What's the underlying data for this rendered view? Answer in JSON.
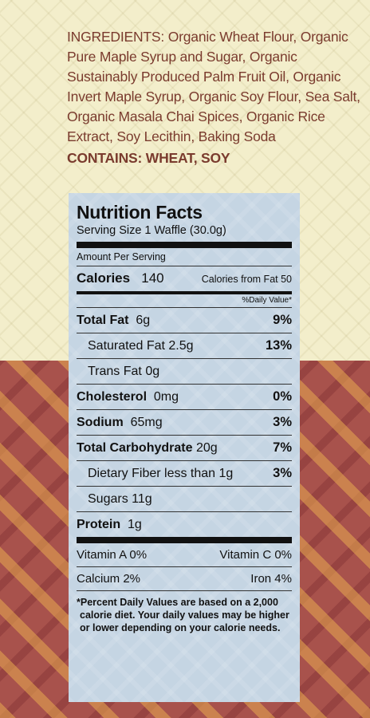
{
  "ingredients": {
    "text": "INGREDIENTS: Organic Wheat Flour, Organic Pure Maple Syrup and Sugar, Organic Sustainably Produced Palm Fruit Oil, Organic Invert Maple Syrup, Organic Soy Flour, Sea Salt, Organic Masala Chai Spices, Organic Rice Extract, Soy Lecithin, Baking Soda",
    "contains": "CONTAINS: WHEAT, SOY"
  },
  "nutrition": {
    "title": "Nutrition Facts",
    "serving_size": "Serving Size 1 Waffle (30.0g)",
    "amount_per_serving": "Amount Per Serving",
    "calories_label": "Calories",
    "calories_value": "140",
    "calories_from_fat": "Calories from Fat 50",
    "daily_value_header": "%Daily Value*",
    "rows": [
      {
        "label": "Total Fat",
        "amount": "6g",
        "pct": "9%"
      },
      {
        "label": "Saturated Fat",
        "amount": "2.5g",
        "pct": "13%"
      },
      {
        "label": "Trans Fat",
        "amount": "0g",
        "pct": ""
      },
      {
        "label": "Cholesterol",
        "amount": "0mg",
        "pct": "0%"
      },
      {
        "label": "Sodium",
        "amount": "65mg",
        "pct": "3%"
      },
      {
        "label": "Total Carbohydrate",
        "amount": "20g",
        "pct": "7%"
      },
      {
        "label": "Dietary Fiber",
        "amount": "less than 1g",
        "pct": "3%"
      },
      {
        "label": "Sugars",
        "amount": "11g",
        "pct": ""
      },
      {
        "label": "Protein",
        "amount": "1g",
        "pct": ""
      }
    ],
    "vitamin_a": "Vitamin A 0%",
    "vitamin_c": "Vitamin C 0%",
    "calcium": "Calcium 2%",
    "iron": "Iron 4%",
    "footnote": "*Percent Daily Values are based on a 2,000 calorie diet. Your daily values may be higher or lower depending on your calorie needs."
  }
}
